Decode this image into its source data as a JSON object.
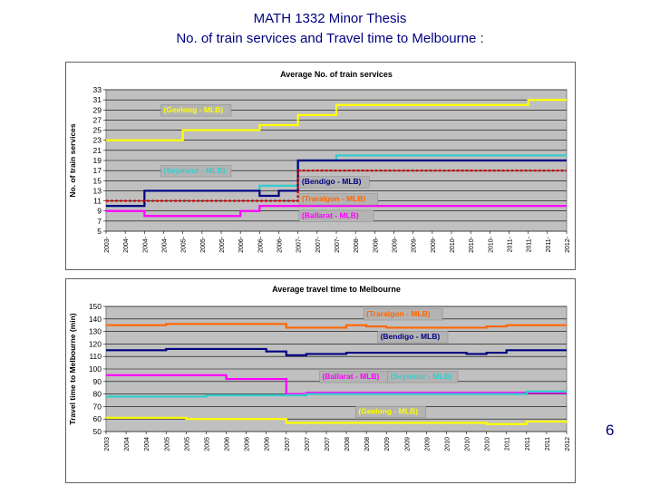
{
  "slide": {
    "title": "MATH 1332  Minor Thesis",
    "subtitle": "No. of train services and Travel time to Melbourne :",
    "page_number": "6"
  },
  "colors": {
    "plot_background": "#C0C0C0",
    "geelong": "#FFFF00",
    "seymour": "#33CCCC",
    "bendigo": "#000080",
    "traralgon": "#CC0000",
    "traralgon_label": "#FF6600",
    "ballarat": "#FF00FF",
    "travel_traralgon": "#FF6600"
  },
  "chart_data": [
    {
      "type": "line",
      "title": "Average No. of train services",
      "ylabel": "No. of train services",
      "xlabel": "",
      "ylim": [
        5,
        33
      ],
      "yticks": [
        5,
        7,
        9,
        11,
        13,
        15,
        17,
        19,
        21,
        23,
        25,
        27,
        29,
        31,
        33
      ],
      "grid": true,
      "x_tick_labels": [
        "2003-",
        "2004-",
        "2004-",
        "2004-",
        "2005-",
        "2005-",
        "2005-",
        "2006-",
        "2006-",
        "2006-",
        "2007-",
        "2007-",
        "2007-",
        "2008-",
        "2008-",
        "2009-",
        "2009-",
        "2009-",
        "2010-",
        "2010-",
        "2010-",
        "2011-",
        "2011-",
        "2011-",
        "2012-"
      ],
      "series": [
        {
          "name": "(Geelong - MLB)",
          "color_key": "geelong",
          "dash": false,
          "label_x": 3.0,
          "label_y": 28.5,
          "values": [
            23,
            23,
            23,
            23,
            25,
            25,
            25,
            25,
            26,
            26,
            28,
            28,
            30,
            30,
            30,
            30,
            30,
            30,
            30,
            30,
            30,
            30,
            31,
            31,
            31
          ]
        },
        {
          "name": "(Seymour - MLB)",
          "color_key": "seymour",
          "dash": false,
          "label_x": 3.0,
          "label_y": 16.5,
          "values": [
            10,
            10,
            13,
            13,
            13,
            13,
            13,
            13,
            14,
            14,
            19,
            19,
            20,
            20,
            20,
            20,
            20,
            20,
            20,
            20,
            20,
            20,
            20,
            20,
            20
          ]
        },
        {
          "name": "(Bendigo - MLB)",
          "color_key": "bendigo",
          "dash": false,
          "label_x": 10.2,
          "label_y": 14.3,
          "values": [
            10,
            10,
            13,
            13,
            13,
            13,
            13,
            13,
            12,
            13,
            19,
            19,
            19,
            19,
            19,
            19,
            19,
            19,
            19,
            19,
            19,
            19,
            19,
            19,
            19
          ]
        },
        {
          "name": "(Traralgon - MLB)",
          "color_key": "traralgon",
          "label_color_key": "traralgon_label",
          "dash": true,
          "label_x": 10.2,
          "label_y": 10.9,
          "values": [
            11,
            11,
            11,
            11,
            11,
            11,
            11,
            11,
            11,
            11,
            17,
            17,
            17,
            17,
            17,
            17,
            17,
            17,
            17,
            17,
            17,
            17,
            17,
            17,
            17
          ]
        },
        {
          "name": "(Ballarat - MLB)",
          "color_key": "ballarat",
          "dash": false,
          "label_x": 10.2,
          "label_y": 7.6,
          "values": [
            9,
            9,
            8,
            8,
            8,
            8,
            8,
            9,
            10,
            10,
            10,
            10,
            10,
            10,
            10,
            10,
            10,
            10,
            10,
            10,
            10,
            10,
            10,
            10,
            10
          ]
        }
      ]
    },
    {
      "type": "line",
      "title": "Average travel time to Melbourne",
      "ylabel": "Travel time to Melbourne (min)",
      "xlabel": "",
      "ylim": [
        50,
        150
      ],
      "yticks": [
        50,
        60,
        70,
        80,
        90,
        100,
        110,
        120,
        130,
        140,
        150
      ],
      "grid": true,
      "x_tick_labels": [
        "2003",
        "2004",
        "2004",
        "2005",
        "2005",
        "2005",
        "2006",
        "2006",
        "2006",
        "2007",
        "2007",
        "2007",
        "2008",
        "2008",
        "2009",
        "2009",
        "2009",
        "2010",
        "2010",
        "2010",
        "2011",
        "2011",
        "2011",
        "2012"
      ],
      "series": [
        {
          "name": "(Traralgon - MLB)",
          "color_key": "travel_traralgon",
          "dash": false,
          "label_x": 13.0,
          "label_y": 142,
          "values": [
            135,
            135,
            135,
            136,
            136,
            136,
            136,
            136,
            136,
            133,
            133,
            133,
            135,
            134,
            133,
            133,
            133,
            133,
            133,
            134,
            135,
            135,
            135,
            135
          ]
        },
        {
          "name": "(Bendigo - MLB)",
          "color_key": "bendigo",
          "dash": false,
          "label_x": 13.7,
          "label_y": 124,
          "values": [
            115,
            115,
            115,
            116,
            116,
            116,
            116,
            116,
            114,
            111,
            112,
            112,
            113,
            113,
            113,
            113,
            113,
            113,
            112,
            113,
            115,
            115,
            115,
            115
          ]
        },
        {
          "name": "(Ballarat - MLB)",
          "color_key": "ballarat",
          "dash": false,
          "label_x": 10.8,
          "label_y": 92,
          "values": [
            95,
            95,
            95,
            95,
            95,
            95,
            92,
            92,
            92,
            80,
            81,
            81,
            81,
            81,
            81,
            81,
            81,
            81,
            81,
            81,
            81,
            81,
            81,
            81
          ]
        },
        {
          "name": "(Seymour - MLB)",
          "color_key": "seymour",
          "dash": false,
          "label_x": 14.2,
          "label_y": 92,
          "values": [
            78,
            78,
            78,
            78,
            78,
            79,
            79,
            79,
            79,
            79,
            80,
            80,
            80,
            80,
            80,
            80,
            80,
            80,
            80,
            80,
            80,
            82,
            82,
            82
          ]
        },
        {
          "name": "(Geelong - MLB)",
          "color_key": "geelong",
          "dash": false,
          "label_x": 12.6,
          "label_y": 64,
          "values": [
            61,
            61,
            61,
            61,
            60,
            60,
            60,
            60,
            60,
            57,
            57,
            57,
            57,
            57,
            57,
            57,
            57,
            57,
            57,
            56,
            56,
            58,
            58,
            57
          ]
        }
      ]
    }
  ]
}
